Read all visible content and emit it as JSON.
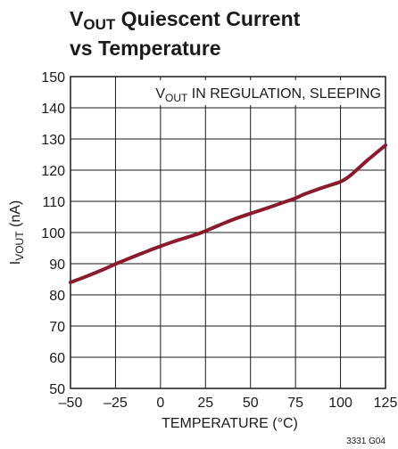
{
  "chart_data": {
    "type": "line",
    "title_line1_main": "V",
    "title_line1_sub": "OUT",
    "title_line1_rest": " Quiescent Current",
    "title_line2": "vs Temperature",
    "annotation_main": "V",
    "annotation_sub": "OUT",
    "annotation_rest": " IN REGULATION, SLEEPING",
    "ylabel_main": "I",
    "ylabel_sub": "VOUT",
    "ylabel_rest": " (nA)",
    "xlabel": "TEMPERATURE (°C)",
    "figure_id": "3331 G04",
    "xlim": [
      -50,
      125
    ],
    "ylim": [
      50,
      150
    ],
    "xticks": [
      "–50",
      "–25",
      "0",
      "25",
      "50",
      "75",
      "100",
      "125"
    ],
    "yticks": [
      "50",
      "60",
      "70",
      "80",
      "90",
      "100",
      "110",
      "120",
      "130",
      "140",
      "150"
    ],
    "grid": true,
    "line_color": "#8b1a2e",
    "series": [
      {
        "x": [
          -50,
          -40,
          -30,
          -25,
          -20,
          -10,
          0,
          10,
          20,
          25,
          30,
          40,
          50,
          60,
          70,
          75,
          80,
          90,
          100,
          105,
          110,
          115,
          120,
          125
        ],
        "y": [
          84,
          86.2,
          88.6,
          89.9,
          91.1,
          93.4,
          95.6,
          97.6,
          99.4,
          100.5,
          101.7,
          104.1,
          106.1,
          108,
          110,
          111,
          112.3,
          114.4,
          116.3,
          118.1,
          120.6,
          123.2,
          125.6,
          128
        ]
      }
    ]
  }
}
